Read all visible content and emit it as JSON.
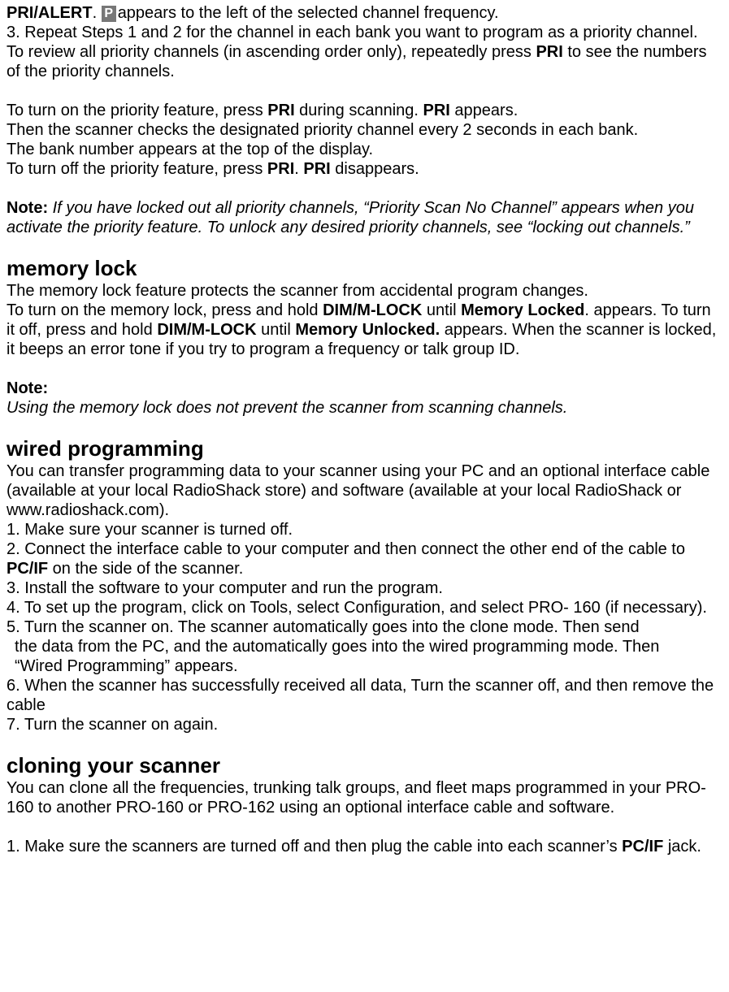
{
  "priority": {
    "pri_alert_label": "PRI/ALERT",
    "pri_alert_suffix": ". ",
    "line1_after_icon": "appears to the left of the selected channel frequency.",
    "step3": "3. Repeat Steps 1 and 2 for the channel in each bank you want to program as a priority channel.",
    "review_pre": "To review all priority channels (in ascending order only), repeatedly press ",
    "review_bold": "PRI",
    "review_post": " to see the numbers of the priority channels.",
    "turnon_pre": "To turn on the priority feature, press ",
    "turnon_b1": "PRI",
    "turnon_mid": " during scanning. ",
    "turnon_b2": "PRI",
    "turnon_post": " appears.",
    "then_line": "Then the scanner checks the designated priority channel every 2 seconds in each bank.",
    "bank_line": "The bank number appears at the top of the display.",
    "turnoff_pre": "To turn off the priority feature, press ",
    "turnoff_b1": "PRI",
    "turnoff_mid": ". ",
    "turnoff_b2": "PRI",
    "turnoff_post": " disappears.",
    "note_label": "Note:",
    "note_body": " If you have locked out all priority channels, “Priority Scan No Channel” appears when you activate the priority feature. To unlock any desired priority channels, see “locking out channels.”"
  },
  "memlock": {
    "heading": "memory lock",
    "intro": "The memory lock feature protects the scanner from accidental program changes.",
    "body_pre": "To turn on the memory lock, press and hold ",
    "b1": "DIM/M-LOCK",
    "body_mid1": " until ",
    "b2": "Memory Locked",
    "body_mid2": ". appears. To turn it off, press and hold ",
    "b3": "DIM/M-LOCK",
    "body_mid3": " until ",
    "b4": "Memory Unlocked.",
    "body_post": " appears. When the scanner is locked, it beeps an error tone if you try to program a frequency or talk group ID.",
    "note_label": "Note:",
    "note_body": "Using the memory lock does not prevent the scanner from scanning channels."
  },
  "wired": {
    "heading": "wired programming",
    "intro": "You can transfer programming data to your scanner using your PC and an optional interface cable (available at your local RadioShack store) and software (available at your local RadioShack or www.radioshack.com).",
    "s1": "1. Make sure your scanner is turned off.",
    "s2_pre": "2. Connect the interface cable to your computer and then connect the other end of the cable to ",
    "s2_bold": "PC/IF",
    "s2_post": " on the side of the scanner.",
    "s3": "3. Install the software to your computer and run the program.",
    "s4": "4. To set up the program, click on Tools, select Configuration, and select PRO- 160 (if necessary).",
    "s5a": "5. Turn the scanner on. The scanner automatically goes into the clone mode. Then send",
    "s5b": "the data from the PC, and the automatically goes into the wired programming mode. Then",
    "s5c": "“Wired Programming” appears.",
    "s6": "6. When the scanner has successfully received all data, Turn the scanner off, and then remove the cable",
    "s7": "7. Turn the scanner on again."
  },
  "cloning": {
    "heading": "cloning your scanner",
    "intro": "You can clone all the frequencies, trunking talk groups, and fleet maps programmed in your PRO-160 to another PRO-160 or PRO-162 using an optional interface cable and software.",
    "s1_pre": "1. Make sure the scanners are turned off and then plug the cable into each scanner’s ",
    "s1_bold": "PC/IF",
    "s1_post": " jack."
  }
}
